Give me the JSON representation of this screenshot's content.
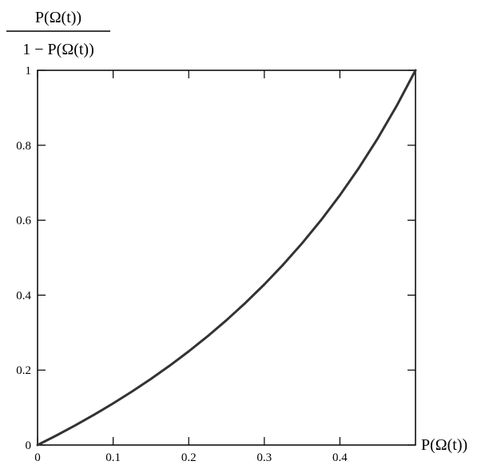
{
  "chart_data": {
    "type": "line",
    "title": "",
    "ylabel_numerator": "P(Ω(t))",
    "ylabel_denominator": "1 − P(Ω(t))",
    "xlabel": "P(Ω(t))",
    "xlim": [
      0,
      0.5
    ],
    "ylim": [
      0,
      1
    ],
    "x_ticks": [
      "0",
      "0.1",
      "0.2",
      "0.3",
      "0.4"
    ],
    "y_ticks": [
      "0",
      "0.2",
      "0.4",
      "0.6",
      "0.8",
      "1"
    ],
    "grid": false,
    "series": [
      {
        "x": [
          0,
          0.025,
          0.05,
          0.075,
          0.1,
          0.125,
          0.15,
          0.175,
          0.2,
          0.225,
          0.25,
          0.275,
          0.3,
          0.325,
          0.35,
          0.375,
          0.4,
          0.425,
          0.45,
          0.475,
          0.5
        ],
        "y": [
          0,
          0.0256,
          0.0526,
          0.0811,
          0.1111,
          0.1429,
          0.1765,
          0.2121,
          0.25,
          0.2903,
          0.3333,
          0.3793,
          0.4286,
          0.4815,
          0.5385,
          0.6,
          0.6667,
          0.7391,
          0.8182,
          0.9048,
          1.0
        ],
        "color": "#333333"
      }
    ]
  }
}
